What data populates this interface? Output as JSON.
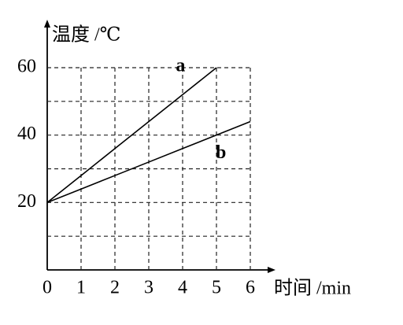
{
  "chart_data": {
    "type": "line",
    "xlabel": "时间 /min",
    "ylabel": "温度 /℃",
    "x": [
      0,
      1,
      2,
      3,
      4,
      5,
      6
    ],
    "series": [
      {
        "name": "a",
        "color": "#000000",
        "values": [
          20,
          28,
          36,
          44,
          52,
          60,
          null
        ]
      },
      {
        "name": "b",
        "color": "#000000",
        "values": [
          20,
          24,
          28,
          32,
          36,
          40,
          44
        ]
      }
    ],
    "xlim": [
      0,
      6
    ],
    "ylim": [
      0,
      60
    ],
    "xticks": [
      0,
      1,
      2,
      3,
      4,
      5,
      6
    ],
    "yticks": [
      20,
      40,
      60
    ],
    "yminor_ticks": [
      10,
      30,
      50
    ],
    "grid": true
  }
}
